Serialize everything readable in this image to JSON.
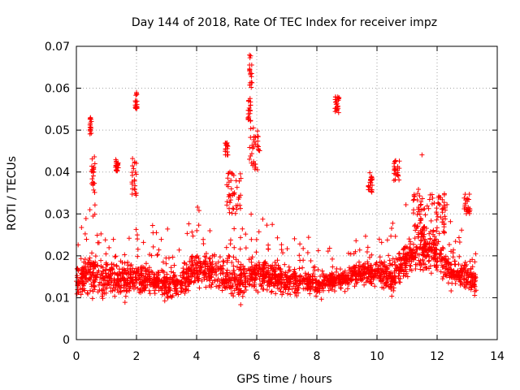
{
  "chart_data": {
    "type": "scatter",
    "title": "Day 144 of 2018, Rate Of TEC Index for receiver impz",
    "xlabel": "GPS time / hours",
    "ylabel": "ROTI / TECUs",
    "xlim": [
      0,
      14
    ],
    "ylim": [
      0,
      0.07
    ],
    "xticks": [
      "0",
      "2",
      "4",
      "6",
      "8",
      "10",
      "12",
      "14"
    ],
    "xtick_values": [
      0,
      2,
      4,
      6,
      8,
      10,
      12,
      14
    ],
    "yticks": [
      "0",
      "0.01",
      "0.02",
      "0.03",
      "0.04",
      "0.05",
      "0.06",
      "0.07"
    ],
    "ytick_values": [
      0,
      0.01,
      0.02,
      0.03,
      0.04,
      0.05,
      0.06,
      0.07
    ],
    "grid": true,
    "marker": "+",
    "marker_color": "#ff0000",
    "series": [
      {
        "name": "ROTI",
        "x_range": [
          0.0,
          13.3
        ],
        "baseline": [
          [
            0.0,
            0.014
          ],
          [
            0.5,
            0.016
          ],
          [
            1.0,
            0.015
          ],
          [
            1.5,
            0.014
          ],
          [
            2.0,
            0.015
          ],
          [
            2.5,
            0.014
          ],
          [
            3.0,
            0.013
          ],
          [
            3.5,
            0.014
          ],
          [
            4.0,
            0.017
          ],
          [
            4.5,
            0.016
          ],
          [
            5.0,
            0.015
          ],
          [
            5.5,
            0.014
          ],
          [
            6.0,
            0.016
          ],
          [
            6.5,
            0.015
          ],
          [
            7.0,
            0.014
          ],
          [
            7.5,
            0.014
          ],
          [
            8.0,
            0.013
          ],
          [
            8.5,
            0.014
          ],
          [
            9.0,
            0.015
          ],
          [
            9.5,
            0.016
          ],
          [
            10.0,
            0.016
          ],
          [
            10.5,
            0.015
          ],
          [
            11.0,
            0.019
          ],
          [
            11.5,
            0.022
          ],
          [
            12.0,
            0.02
          ],
          [
            12.5,
            0.016
          ],
          [
            13.0,
            0.015
          ],
          [
            13.3,
            0.014
          ]
        ],
        "spread": [
          [
            0.0,
            0.005
          ],
          [
            0.5,
            0.008
          ],
          [
            1.0,
            0.007
          ],
          [
            2.0,
            0.006
          ],
          [
            3.0,
            0.005
          ],
          [
            4.0,
            0.006
          ],
          [
            5.0,
            0.006
          ],
          [
            6.0,
            0.006
          ],
          [
            7.0,
            0.005
          ],
          [
            8.0,
            0.004
          ],
          [
            9.0,
            0.004
          ],
          [
            10.0,
            0.005
          ],
          [
            11.0,
            0.007
          ],
          [
            11.5,
            0.008
          ],
          [
            12.0,
            0.007
          ],
          [
            13.0,
            0.005
          ],
          [
            13.3,
            0.005
          ]
        ],
        "clusters": [
          {
            "x": [
              0.45,
              0.5
            ],
            "y": [
              0.049,
              0.053
            ]
          },
          {
            "x": [
              0.5,
              0.62
            ],
            "y": [
              0.035,
              0.044
            ]
          },
          {
            "x": [
              1.3,
              1.4
            ],
            "y": [
              0.04,
              0.043
            ]
          },
          {
            "x": [
              1.95,
              2.02
            ],
            "y": [
              0.055,
              0.059
            ]
          },
          {
            "x": [
              1.85,
              2.0
            ],
            "y": [
              0.033,
              0.044
            ]
          },
          {
            "x": [
              4.95,
              5.05
            ],
            "y": [
              0.044,
              0.047
            ]
          },
          {
            "x": [
              5.0,
              5.5
            ],
            "y": [
              0.03,
              0.04
            ]
          },
          {
            "x": [
              5.75,
              5.85
            ],
            "y": [
              0.06,
              0.068
            ]
          },
          {
            "x": [
              5.7,
              5.8
            ],
            "y": [
              0.052,
              0.058
            ]
          },
          {
            "x": [
              5.75,
              6.1
            ],
            "y": [
              0.04,
              0.051
            ]
          },
          {
            "x": [
              8.6,
              8.75
            ],
            "y": [
              0.054,
              0.058
            ]
          },
          {
            "x": [
              10.55,
              10.75
            ],
            "y": [
              0.038,
              0.043
            ]
          },
          {
            "x": [
              9.7,
              9.85
            ],
            "y": [
              0.035,
              0.04
            ]
          },
          {
            "x": [
              11.2,
              12.3
            ],
            "y": [
              0.025,
              0.035
            ]
          },
          {
            "x": [
              12.9,
              13.1
            ],
            "y": [
              0.03,
              0.035
            ]
          }
        ]
      }
    ]
  }
}
